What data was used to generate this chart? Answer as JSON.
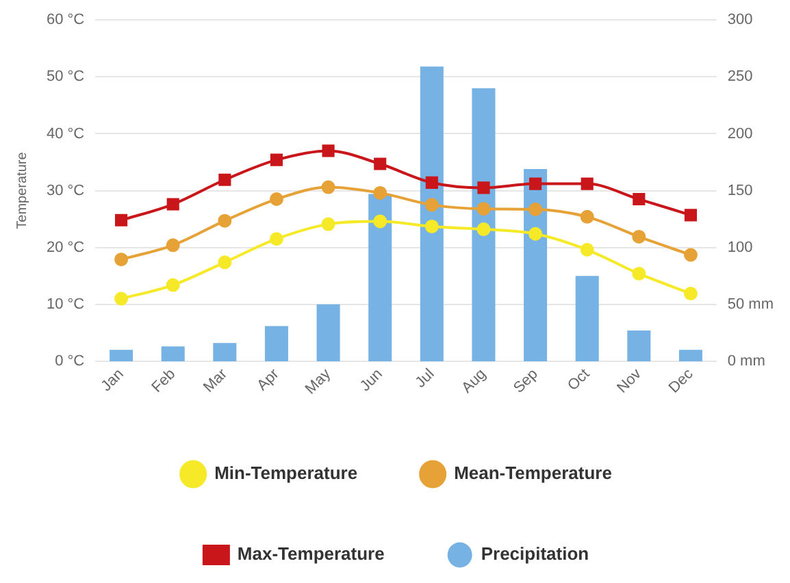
{
  "chart_data": {
    "type": "line",
    "ylabel": "Temperature",
    "categories": [
      "Jan",
      "Feb",
      "Mar",
      "Apr",
      "May",
      "Jun",
      "Jul",
      "Aug",
      "Sep",
      "Oct",
      "Nov",
      "Dec"
    ],
    "series": [
      {
        "name": "Min-Temperature",
        "color": "#f5e928",
        "marker": "circle",
        "values": [
          11.0,
          13.4,
          17.4,
          21.5,
          24.1,
          24.6,
          23.7,
          23.2,
          22.4,
          19.6,
          15.4,
          11.9
        ]
      },
      {
        "name": "Mean-Temperature",
        "color": "#e6a236",
        "marker": "circle",
        "values": [
          17.9,
          20.4,
          24.7,
          28.5,
          30.6,
          29.6,
          27.5,
          26.8,
          26.7,
          25.4,
          21.9,
          18.7
        ]
      },
      {
        "name": "Max-Temperature",
        "color": "#c8161b",
        "marker": "square",
        "values": [
          24.8,
          27.6,
          31.9,
          35.4,
          37.0,
          34.7,
          31.4,
          30.5,
          31.2,
          31.2,
          28.5,
          25.7
        ]
      },
      {
        "name": "Precipitation",
        "type": "bar",
        "axis": "y2",
        "color": "#76b2e3",
        "values": [
          10,
          13,
          16,
          31,
          50,
          147,
          259,
          240,
          169,
          75,
          27,
          10
        ]
      }
    ],
    "ylim": [
      0,
      60
    ],
    "yticks": [
      {
        "value": 0,
        "label": "0 °C"
      },
      {
        "value": 10,
        "label": "10 °C"
      },
      {
        "value": 20,
        "label": "20 °C"
      },
      {
        "value": 30,
        "label": "30 °C"
      },
      {
        "value": 40,
        "label": "40 °C"
      },
      {
        "value": 50,
        "label": "50 °C"
      },
      {
        "value": 60,
        "label": "60 °C"
      }
    ],
    "y2lim": [
      0,
      300
    ],
    "y2ticks": [
      {
        "value": 0,
        "label": "0 mm"
      },
      {
        "value": 50,
        "label": "50 mm"
      },
      100,
      150,
      200,
      250,
      300
    ],
    "grid": "y",
    "legend": "bottom"
  }
}
